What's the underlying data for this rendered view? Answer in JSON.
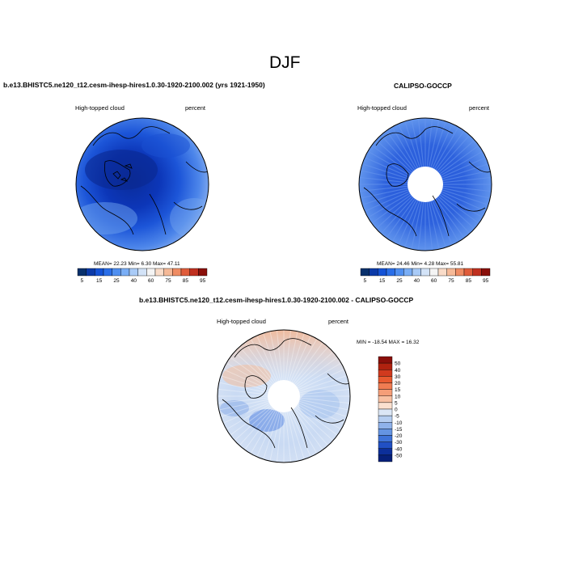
{
  "figure": {
    "title": "DJF"
  },
  "panels": [
    {
      "title": "b.e13.BHISTC5.ne120_t12.cesm-ihesp-hires1.0.30-1920-2100.002 (yrs 1921-1950)",
      "left_label": "High-topped cloud",
      "right_label": "percent",
      "stats_text": "MEAN=  22.23  Min=   6.30  Max=  47.11"
    },
    {
      "title": "CALIPSO-GOCCP",
      "left_label": "High-topped cloud",
      "right_label": "percent",
      "stats_text": "MEAN=  24.46  Min=   4.28  Max=  55.81"
    },
    {
      "title": "b.e13.BHISTC5.ne120_t12.cesm-ihesp-hires1.0.30-1920-2100.002 - CALIPSO-GOCCP",
      "left_label": "High-topped cloud",
      "right_label": "percent",
      "stats_text": "MIN = -18.54 MAX =  16.32"
    }
  ],
  "colorbar_abs": {
    "labels": [
      "5",
      "15",
      "25",
      "40",
      "60",
      "75",
      "85",
      "95"
    ],
    "colors": [
      "#08306b",
      "#0b3aa8",
      "#1452d6",
      "#2a6ee8",
      "#4f8ff0",
      "#7aaef5",
      "#a9cbf7",
      "#d3e3f7",
      "#f4f4f4",
      "#f9dcc9",
      "#f5b997",
      "#ef8c63",
      "#e05c3a",
      "#c0301f",
      "#8a0f0a"
    ]
  },
  "colorbar_diff": {
    "labels": [
      "50",
      "40",
      "30",
      "20",
      "15",
      "10",
      "5",
      "0",
      "-5",
      "-10",
      "-15",
      "-20",
      "-30",
      "-40",
      "-50"
    ],
    "colors": [
      "#8a0f0a",
      "#b0220f",
      "#d13a1e",
      "#e85a30",
      "#f07c52",
      "#f59e78",
      "#f8c0a2",
      "#fbe0cf",
      "#dbe6f5",
      "#b5cdf0",
      "#8fb2ea",
      "#6594e2",
      "#3f73d8",
      "#2150c4",
      "#0c2f9a",
      "#06207a"
    ]
  },
  "chart_data": [
    {
      "type": "heatmap",
      "title": "b.e13.BHISTC5.ne120_t12.cesm-ihesp-hires1.0.30-1920-2100.002 (yrs 1921-1950)",
      "variable": "High-topped cloud",
      "units": "percent",
      "projection": "north polar stereographic",
      "contour_levels": [
        5,
        10,
        15,
        20,
        25,
        30,
        35,
        40,
        50,
        60,
        65,
        70,
        75,
        80,
        85,
        90,
        95
      ],
      "mean": 22.23,
      "min": 6.3,
      "max": 47.11
    },
    {
      "type": "heatmap",
      "title": "CALIPSO-GOCCP",
      "variable": "High-topped cloud",
      "units": "percent",
      "projection": "north polar stereographic",
      "contour_levels": [
        5,
        10,
        15,
        20,
        25,
        30,
        35,
        40,
        50,
        60,
        65,
        70,
        75,
        80,
        85,
        90,
        95
      ],
      "mean": 24.46,
      "min": 4.28,
      "max": 55.81
    },
    {
      "type": "heatmap",
      "title": "b.e13.BHISTC5.ne120_t12.cesm-ihesp-hires1.0.30-1920-2100.002 - CALIPSO-GOCCP",
      "variable": "High-topped cloud",
      "units": "percent",
      "projection": "north polar stereographic",
      "contour_levels": [
        -50,
        -40,
        -30,
        -20,
        -15,
        -10,
        -5,
        0,
        5,
        10,
        15,
        20,
        30,
        40,
        50
      ],
      "min": -18.54,
      "max": 16.32
    }
  ]
}
